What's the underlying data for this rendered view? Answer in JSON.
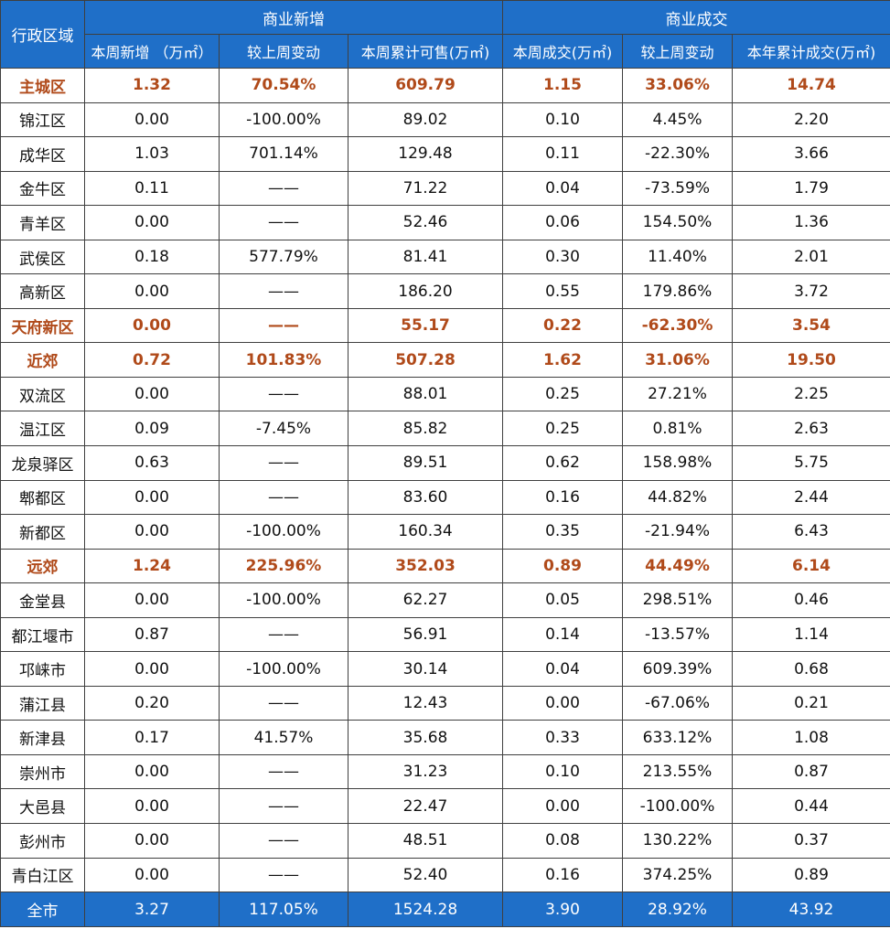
{
  "header": {
    "region_label": "行政区域",
    "group_new": "商业新增",
    "group_deal": "商业成交",
    "columns": [
      "本周新增 （万㎡）",
      "较上周变动",
      "本周累计可售(万㎡)",
      "本周成交(万㎡)",
      "较上周变动",
      "本年累计成交(万㎡)"
    ]
  },
  "rows": [
    {
      "region": "主城区",
      "new_week": "1.32",
      "new_change": "70.54%",
      "avail": "609.79",
      "deal_week": "1.15",
      "deal_change": "33.06%",
      "deal_year": "14.74",
      "summary": true
    },
    {
      "region": "锦江区",
      "new_week": "0.00",
      "new_change": "-100.00%",
      "avail": "89.02",
      "deal_week": "0.10",
      "deal_change": "4.45%",
      "deal_year": "2.20",
      "summary": false
    },
    {
      "region": "成华区",
      "new_week": "1.03",
      "new_change": "701.14%",
      "avail": "129.48",
      "deal_week": "0.11",
      "deal_change": "-22.30%",
      "deal_year": "3.66",
      "summary": false
    },
    {
      "region": "金牛区",
      "new_week": "0.11",
      "new_change": "——",
      "avail": "71.22",
      "deal_week": "0.04",
      "deal_change": "-73.59%",
      "deal_year": "1.79",
      "summary": false
    },
    {
      "region": "青羊区",
      "new_week": "0.00",
      "new_change": "——",
      "avail": "52.46",
      "deal_week": "0.06",
      "deal_change": "154.50%",
      "deal_year": "1.36",
      "summary": false
    },
    {
      "region": "武侯区",
      "new_week": "0.18",
      "new_change": "577.79%",
      "avail": "81.41",
      "deal_week": "0.30",
      "deal_change": "11.40%",
      "deal_year": "2.01",
      "summary": false
    },
    {
      "region": "高新区",
      "new_week": "0.00",
      "new_change": "——",
      "avail": "186.20",
      "deal_week": "0.55",
      "deal_change": "179.86%",
      "deal_year": "3.72",
      "summary": false
    },
    {
      "region": "天府新区",
      "new_week": "0.00",
      "new_change": "——",
      "avail": "55.17",
      "deal_week": "0.22",
      "deal_change": "-62.30%",
      "deal_year": "3.54",
      "summary": true
    },
    {
      "region": "近郊",
      "new_week": "0.72",
      "new_change": "101.83%",
      "avail": "507.28",
      "deal_week": "1.62",
      "deal_change": "31.06%",
      "deal_year": "19.50",
      "summary": true
    },
    {
      "region": "双流区",
      "new_week": "0.00",
      "new_change": "——",
      "avail": "88.01",
      "deal_week": "0.25",
      "deal_change": "27.21%",
      "deal_year": "2.25",
      "summary": false
    },
    {
      "region": "温江区",
      "new_week": "0.09",
      "new_change": "-7.45%",
      "avail": "85.82",
      "deal_week": "0.25",
      "deal_change": "0.81%",
      "deal_year": "2.63",
      "summary": false
    },
    {
      "region": "龙泉驿区",
      "new_week": "0.63",
      "new_change": "——",
      "avail": "89.51",
      "deal_week": "0.62",
      "deal_change": "158.98%",
      "deal_year": "5.75",
      "summary": false
    },
    {
      "region": "郫都区",
      "new_week": "0.00",
      "new_change": "——",
      "avail": "83.60",
      "deal_week": "0.16",
      "deal_change": "44.82%",
      "deal_year": "2.44",
      "summary": false
    },
    {
      "region": "新都区",
      "new_week": "0.00",
      "new_change": "-100.00%",
      "avail": "160.34",
      "deal_week": "0.35",
      "deal_change": "-21.94%",
      "deal_year": "6.43",
      "summary": false
    },
    {
      "region": "远郊",
      "new_week": "1.24",
      "new_change": "225.96%",
      "avail": "352.03",
      "deal_week": "0.89",
      "deal_change": "44.49%",
      "deal_year": "6.14",
      "summary": true
    },
    {
      "region": "金堂县",
      "new_week": "0.00",
      "new_change": "-100.00%",
      "avail": "62.27",
      "deal_week": "0.05",
      "deal_change": "298.51%",
      "deal_year": "0.46",
      "summary": false
    },
    {
      "region": "都江堰市",
      "new_week": "0.87",
      "new_change": "——",
      "avail": "56.91",
      "deal_week": "0.14",
      "deal_change": "-13.57%",
      "deal_year": "1.14",
      "summary": false
    },
    {
      "region": "邛崃市",
      "new_week": "0.00",
      "new_change": "-100.00%",
      "avail": "30.14",
      "deal_week": "0.04",
      "deal_change": "609.39%",
      "deal_year": "0.68",
      "summary": false
    },
    {
      "region": "蒲江县",
      "new_week": "0.20",
      "new_change": "——",
      "avail": "12.43",
      "deal_week": "0.00",
      "deal_change": "-67.06%",
      "deal_year": "0.21",
      "summary": false
    },
    {
      "region": "新津县",
      "new_week": "0.17",
      "new_change": "41.57%",
      "avail": "35.68",
      "deal_week": "0.33",
      "deal_change": "633.12%",
      "deal_year": "1.08",
      "summary": false
    },
    {
      "region": "崇州市",
      "new_week": "0.00",
      "new_change": "——",
      "avail": "31.23",
      "deal_week": "0.10",
      "deal_change": "213.55%",
      "deal_year": "0.87",
      "summary": false
    },
    {
      "region": "大邑县",
      "new_week": "0.00",
      "new_change": "——",
      "avail": "22.47",
      "deal_week": "0.00",
      "deal_change": "-100.00%",
      "deal_year": "0.44",
      "summary": false
    },
    {
      "region": "彭州市",
      "new_week": "0.00",
      "new_change": "——",
      "avail": "48.51",
      "deal_week": "0.08",
      "deal_change": "130.22%",
      "deal_year": "0.37",
      "summary": false
    },
    {
      "region": "青白江区",
      "new_week": "0.00",
      "new_change": "——",
      "avail": "52.40",
      "deal_week": "0.16",
      "deal_change": "374.25%",
      "deal_year": "0.89",
      "summary": false
    }
  ],
  "total": {
    "region": "全市",
    "new_week": "3.27",
    "new_change": "117.05%",
    "avail": "1524.28",
    "deal_week": "3.90",
    "deal_change": "28.92%",
    "deal_year": "43.92"
  },
  "colors": {
    "header_bg": "#1f6fc8",
    "summary_text": "#b04a1a",
    "border": "#3f3f3f"
  }
}
